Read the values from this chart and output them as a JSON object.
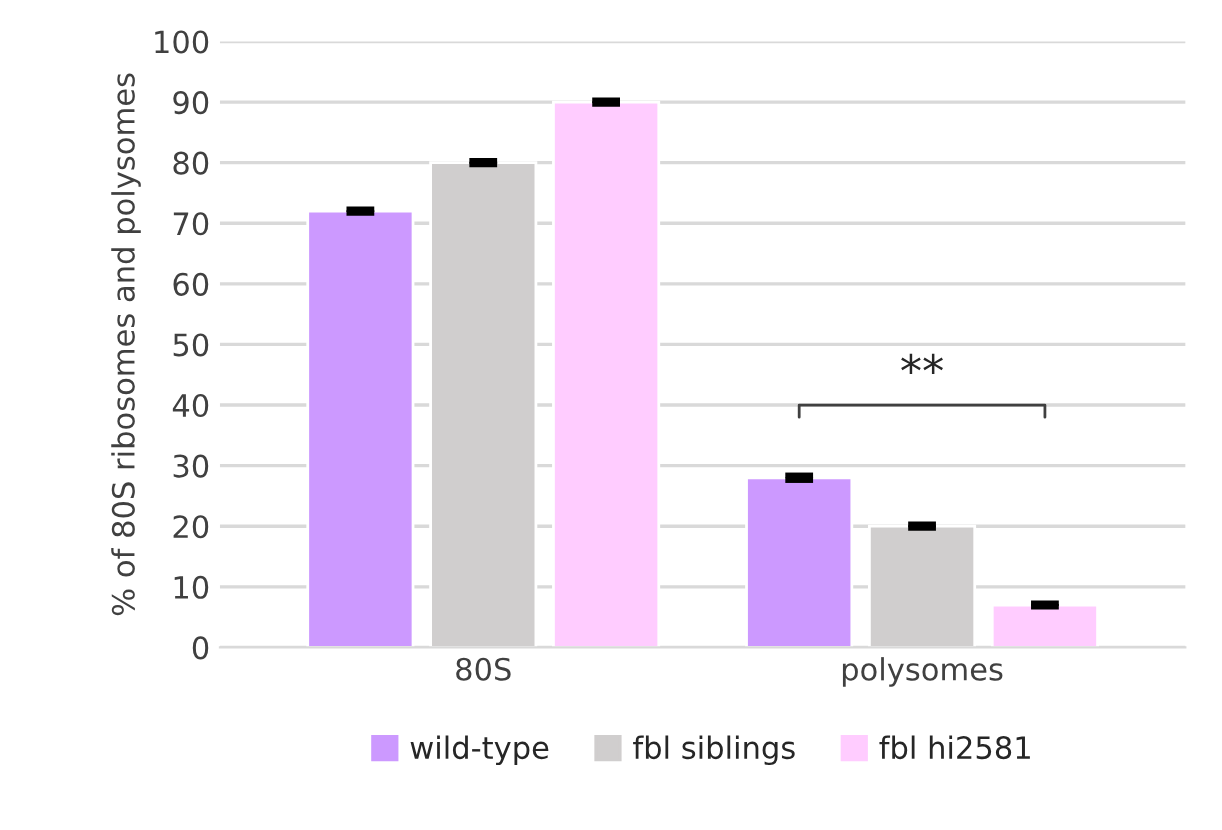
{
  "chart_data": {
    "type": "bar",
    "ylabel": "% of 80S ribosomes and polysomes",
    "categories": [
      "80S",
      "polysomes"
    ],
    "series": [
      {
        "name": "wild-type",
        "color": "#cc99ff",
        "values": [
          72,
          28
        ],
        "errors": [
          0.3,
          0.4
        ]
      },
      {
        "name": "fbl siblings",
        "color": "#d0cece",
        "values": [
          80,
          20
        ],
        "errors": [
          0.3,
          0.3
        ]
      },
      {
        "name": "fbl hi2581",
        "color": "#ffccff",
        "values": [
          90,
          7
        ],
        "errors": [
          0.3,
          0.3
        ]
      }
    ],
    "ylim": [
      0,
      100
    ],
    "yticks": [
      0,
      10,
      20,
      30,
      40,
      50,
      60,
      70,
      80,
      90,
      100
    ],
    "annotations": [
      "**"
    ],
    "grid": "y",
    "legend": "bottom"
  }
}
